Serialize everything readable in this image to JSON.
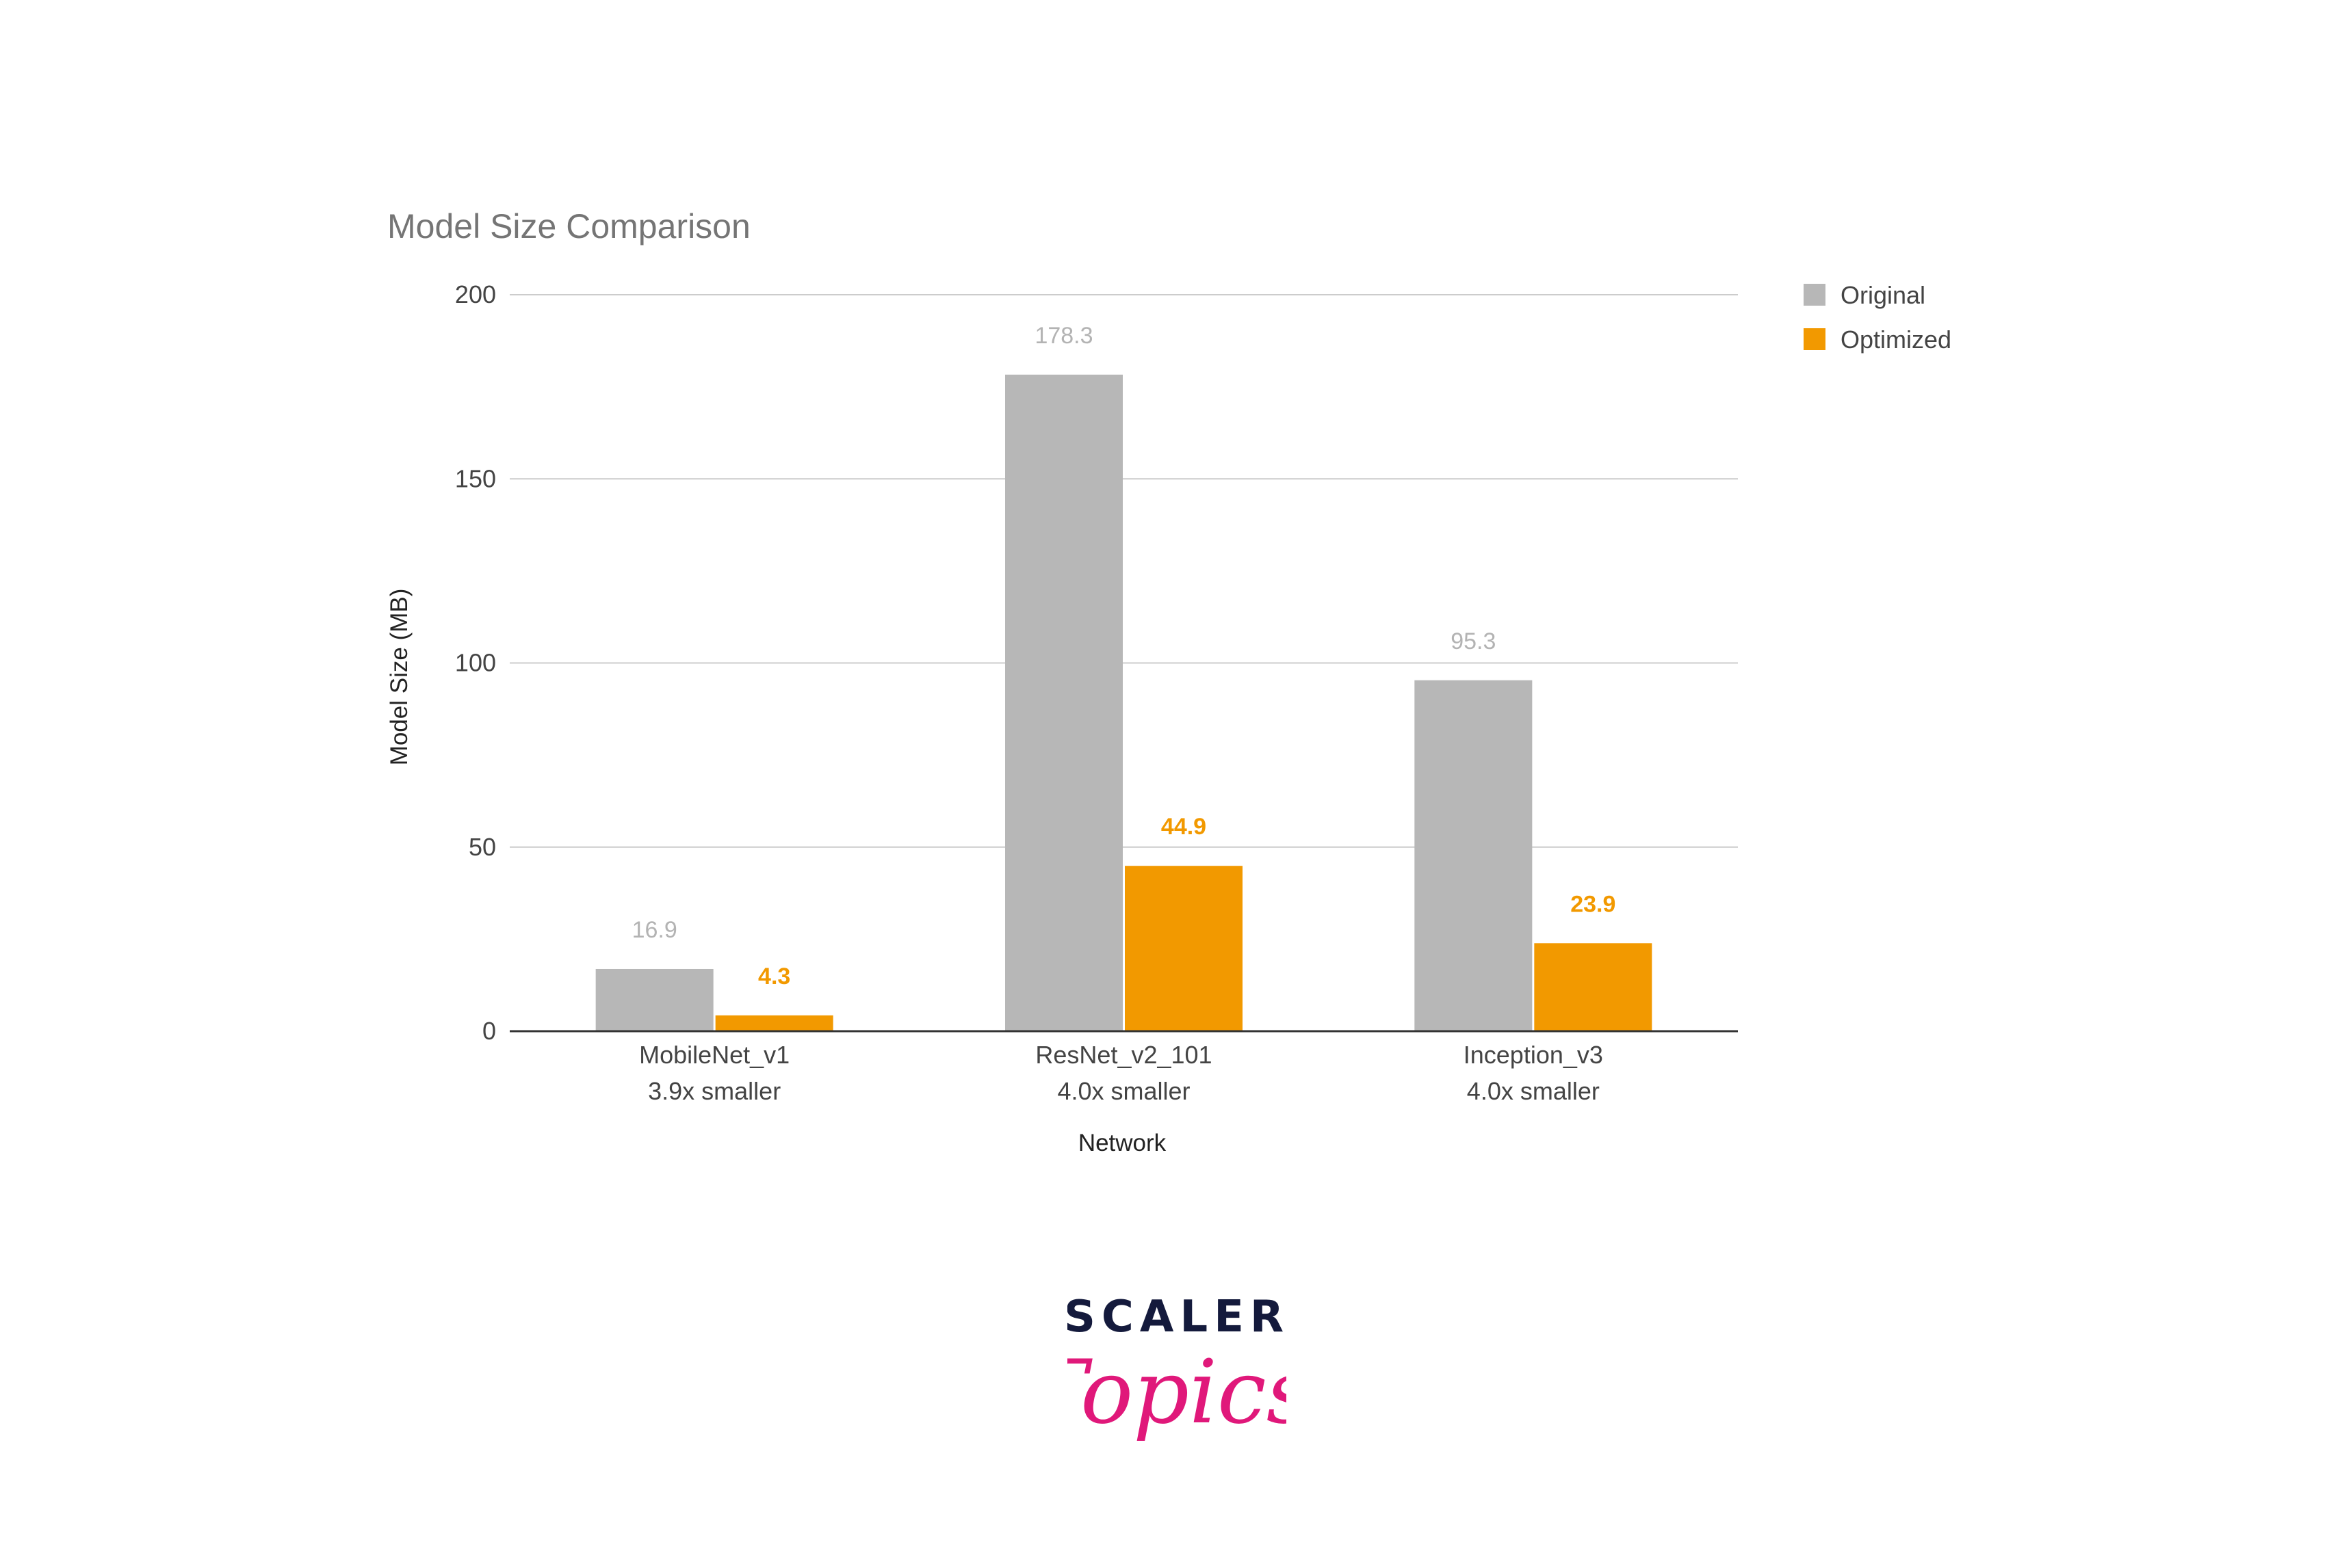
{
  "chart_data": {
    "type": "bar",
    "title": "Model Size Comparison",
    "xlabel": "Network",
    "ylabel": "Model Size (MB)",
    "ylim": [
      0,
      200
    ],
    "yticks": [
      0,
      50,
      100,
      150,
      200
    ],
    "grid": true,
    "legend_position": "top-right",
    "categories": [
      {
        "name": "MobileNet_v1",
        "note": "3.9x smaller"
      },
      {
        "name": "ResNet_v2_101",
        "note": "4.0x smaller"
      },
      {
        "name": "Inception_v3",
        "note": "4.0x smaller"
      }
    ],
    "series": [
      {
        "name": "Original",
        "color": "#b7b7b7",
        "label_color": "#b3b3b3",
        "values": [
          16.9,
          178.3,
          95.3
        ]
      },
      {
        "name": "Optimized",
        "color": "#f29900",
        "label_color": "#f29900",
        "values": [
          4.3,
          44.9,
          23.9
        ]
      }
    ]
  },
  "logo": {
    "word": "SCALER",
    "script": "Topics"
  }
}
